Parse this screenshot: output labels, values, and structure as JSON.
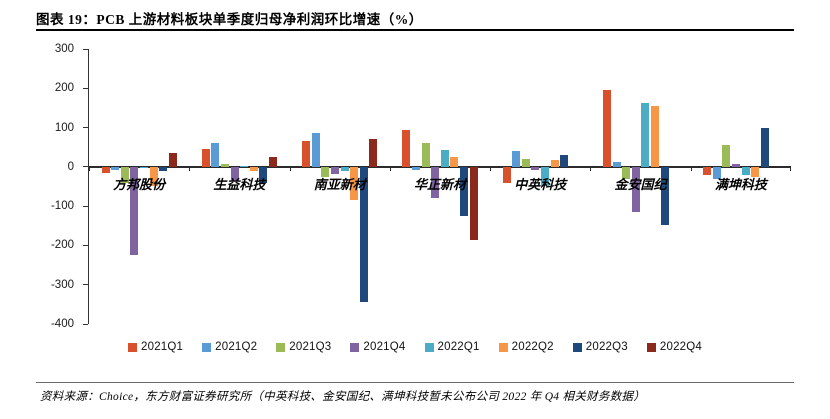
{
  "title": "图表 19：PCB 上游材料板块单季度归母净利润环比增速（%）",
  "source_note": "资料来源：Choice，东方财富证券研究所（中英科技、金安国纪、满坤科技暂未公布公司 2022 年 Q4 相关财务数据）",
  "chart_data": {
    "type": "bar",
    "title": "PCB 上游材料板块单季度归母净利润环比增速（%）",
    "categories": [
      "方邦股份",
      "生益科技",
      "南亚新材",
      "华正新材",
      "中英科技",
      "金安国纪",
      "满坤科技"
    ],
    "series": [
      {
        "name": "2021Q1",
        "color": "#D9512C",
        "values": [
          -15,
          45,
          65,
          95,
          -40,
          195,
          -20
        ]
      },
      {
        "name": "2021Q2",
        "color": "#5B9BD5",
        "values": [
          -8,
          60,
          85,
          -8,
          40,
          12,
          -30
        ]
      },
      {
        "name": "2021Q3",
        "color": "#9BBB59",
        "values": [
          -40,
          8,
          -25,
          60,
          20,
          -30,
          55
        ]
      },
      {
        "name": "2021Q4",
        "color": "#8064A2",
        "values": [
          -225,
          -35,
          -18,
          -80,
          -8,
          -115,
          8
        ]
      },
      {
        "name": "2022Q1",
        "color": "#4BACC6",
        "values": [
          -2,
          1,
          -10,
          42,
          -50,
          163,
          -20
        ]
      },
      {
        "name": "2022Q2",
        "color": "#F79646",
        "values": [
          -50,
          -10,
          -85,
          25,
          18,
          155,
          -25
        ]
      },
      {
        "name": "2022Q3",
        "color": "#1F497D",
        "values": [
          -10,
          -40,
          -345,
          -125,
          30,
          -148,
          100
        ]
      },
      {
        "name": "2022Q4",
        "color": "#8B2A1C",
        "values": [
          35,
          25,
          70,
          -185,
          null,
          null,
          null
        ]
      }
    ],
    "ylim": [
      -400,
      300
    ],
    "yticks": [
      300,
      200,
      100,
      0,
      -100,
      -200,
      -300,
      -400
    ],
    "xlabel": "",
    "ylabel": "",
    "grid": false,
    "legend_position": "bottom"
  }
}
